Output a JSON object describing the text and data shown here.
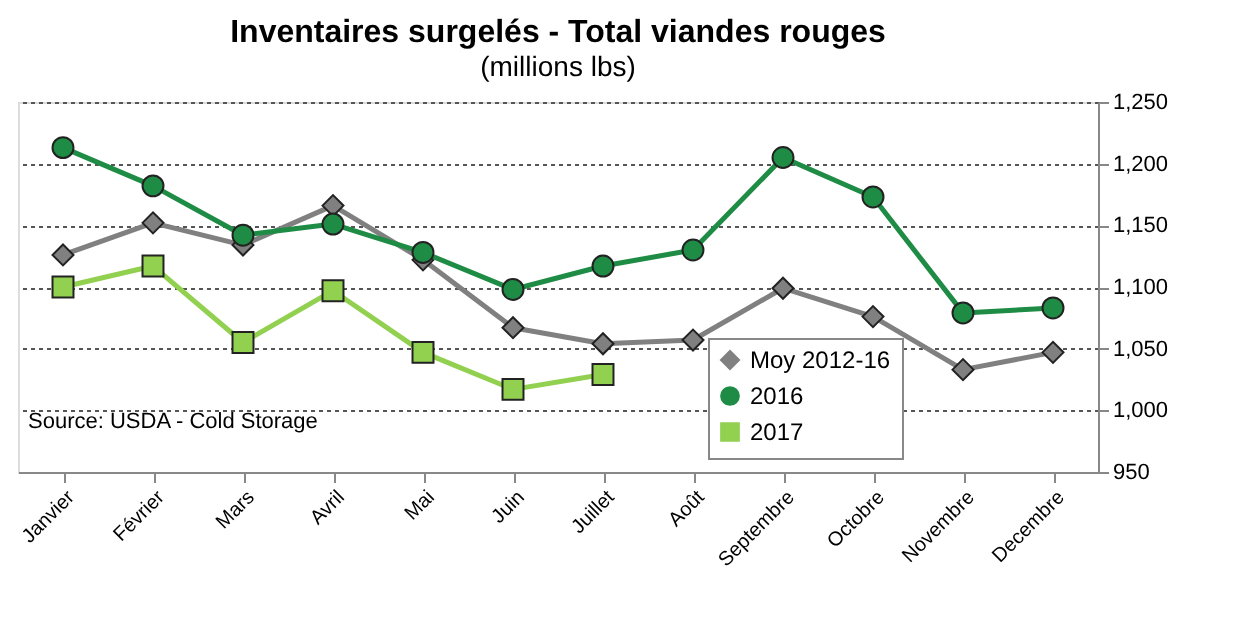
{
  "chart_data": {
    "type": "line",
    "title": "Inventaires surgelés - Total viandes rouges",
    "subtitle": "(millions lbs)",
    "categories": [
      "Janvier",
      "Février",
      "Mars",
      "Avril",
      "Mai",
      "Juin",
      "Juillet",
      "Août",
      "Septembre",
      "Octobre",
      "Novembre",
      "Decembre"
    ],
    "series": [
      {
        "name": "Moy 2012-16",
        "color": "#808080",
        "marker": "diamond",
        "values": [
          1126,
          1152,
          1134,
          1166,
          1122,
          1067,
          1054,
          1057,
          1099,
          1076,
          1033,
          1047
        ]
      },
      {
        "name": "2016",
        "color": "#1e8c45",
        "marker": "circle",
        "values": [
          1213,
          1182,
          1142,
          1151,
          1128,
          1098,
          1117,
          1130,
          1205,
          1173,
          1079,
          1083
        ]
      },
      {
        "name": "2017",
        "color": "#92d050",
        "marker": "square",
        "values": [
          1100,
          1117,
          1055,
          1097,
          1047,
          1017,
          1029,
          null,
          null,
          null,
          null,
          null
        ]
      }
    ],
    "ylim": [
      950,
      1250
    ],
    "yticks": [
      950,
      {
        "value": 1000,
        "label": "1,000"
      },
      {
        "value": 1050,
        "label": "1,050"
      },
      {
        "value": 1100,
        "label": "1,100"
      },
      {
        "value": 1150,
        "label": "1,150"
      },
      {
        "value": 1200,
        "label": "1,200"
      },
      {
        "value": 1250,
        "label": "1,250"
      }
    ],
    "grid": "y",
    "legend": "bottom",
    "annotations": [
      "Source: USDA - Cold Storage"
    ]
  }
}
